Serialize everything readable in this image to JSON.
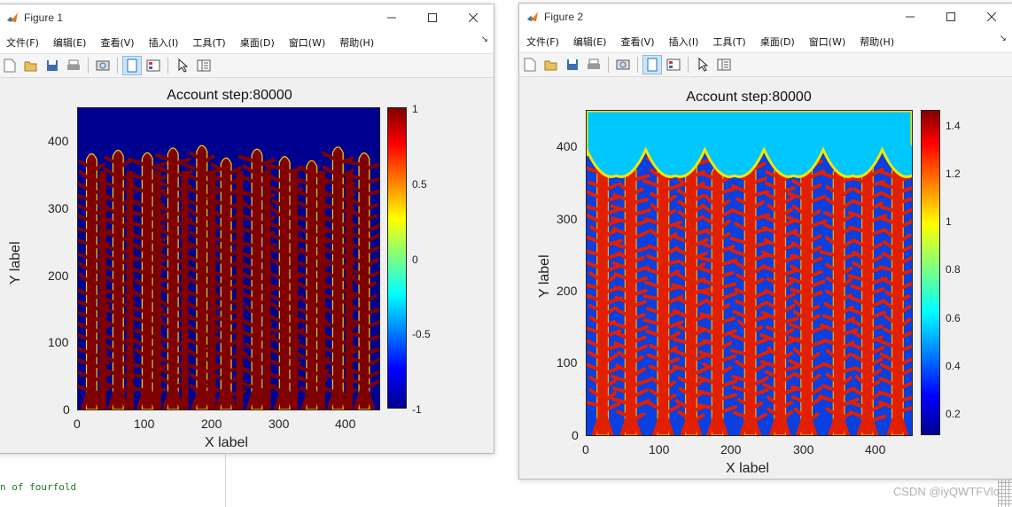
{
  "watermark": "CSDN @iyQWTFVlo",
  "background_code": "n of fourfold",
  "figures": [
    {
      "title": "Figure 1",
      "menu": [
        "文件(F)",
        "编辑(E)",
        "查看(V)",
        "插入(I)",
        "工具(T)",
        "桌面(D)",
        "窗口(W)",
        "帮助(H)"
      ],
      "plot": {
        "title": "Account step:80000",
        "xlabel": "X label",
        "ylabel": "Y label",
        "xticks": [
          "0",
          "100",
          "200",
          "300",
          "400"
        ],
        "yticks": [
          "0",
          "100",
          "200",
          "300",
          "400"
        ],
        "colorbar_ticks": [
          "1",
          "0.5",
          "0",
          "-0.5",
          "-1"
        ],
        "colormap": "jet",
        "colorbar_range": [
          -1,
          1
        ],
        "colors": {
          "high": "#7f0000",
          "low": "#00008f"
        }
      }
    },
    {
      "title": "Figure 2",
      "menu": [
        "文件(F)",
        "编辑(E)",
        "查看(V)",
        "插入(I)",
        "工具(T)",
        "桌面(D)",
        "窗口(W)",
        "帮助(H)"
      ],
      "plot": {
        "title": "Account step:80000",
        "xlabel": "X label",
        "ylabel": "Y label",
        "xticks": [
          "0",
          "100",
          "200",
          "300",
          "400"
        ],
        "yticks": [
          "0",
          "100",
          "200",
          "300",
          "400"
        ],
        "colorbar_ticks": [
          "1.4",
          "1.2",
          "1",
          "0.8",
          "0.6",
          "0.4",
          "0.2"
        ],
        "colormap": "jet",
        "colorbar_range": [
          0.1,
          1.5
        ],
        "colors": {
          "high": "#e02000",
          "low": "#0a3fe0",
          "top": "#00c8ff"
        }
      }
    }
  ]
}
